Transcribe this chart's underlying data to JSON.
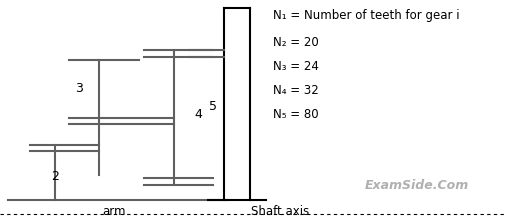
{
  "bg_color": "#ffffff",
  "text_color": "#000000",
  "gray_color": "#606060",
  "annotations": {
    "label_2": "2",
    "label_3": "3",
    "label_4": "4",
    "label_5": "5",
    "arm": "arm",
    "shaft_axis": "Shaft axis",
    "watermark": "ExamSide.Com",
    "N1": "N₁ = Number of teeth for gear i",
    "N2": "N₂ = 20",
    "N3": "N₃ = 24",
    "N4": "N₄ = 32",
    "N5": "N₅ = 80"
  },
  "figsize": [
    5.11,
    2.22
  ],
  "dpi": 100
}
